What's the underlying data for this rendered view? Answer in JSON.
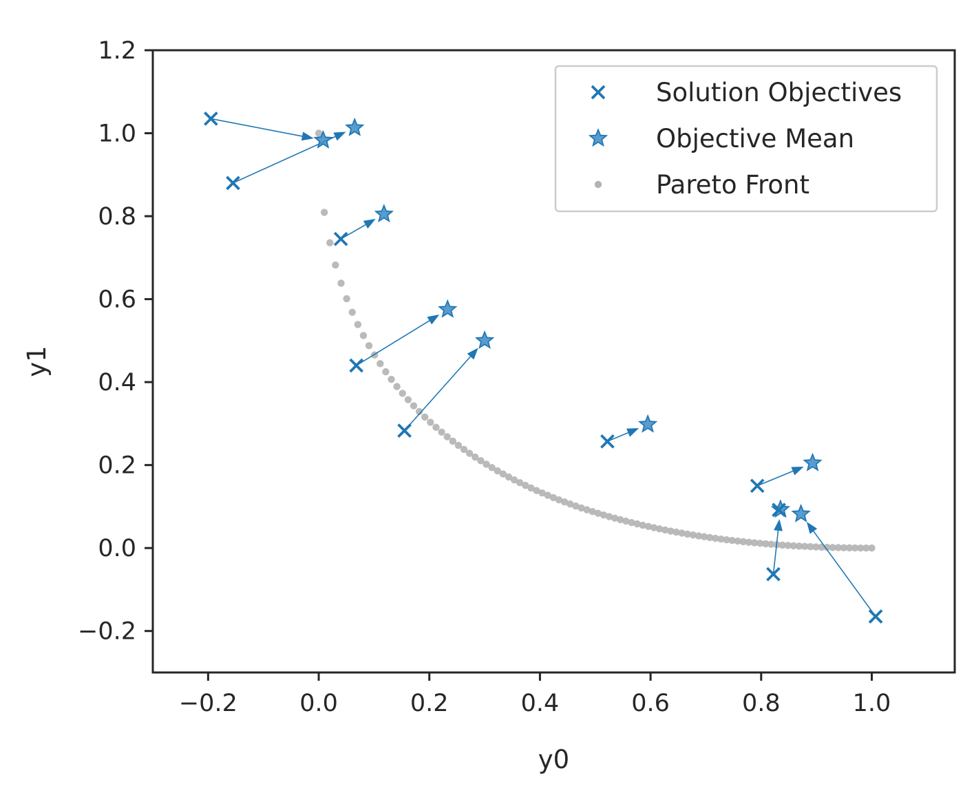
{
  "chart_data": {
    "type": "scatter",
    "title": "",
    "xlabel": "y0",
    "ylabel": "y1",
    "xlim": [
      -0.3,
      1.15
    ],
    "ylim": [
      -0.3,
      1.2
    ],
    "xticks": [
      -0.2,
      0.0,
      0.2,
      0.4,
      0.6,
      0.8,
      1.0
    ],
    "yticks": [
      -0.2,
      0.0,
      0.2,
      0.4,
      0.6,
      0.8,
      1.0,
      1.2
    ],
    "xtick_labels": [
      "−0.2",
      "0.0",
      "0.2",
      "0.4",
      "0.6",
      "0.8",
      "1.0"
    ],
    "ytick_labels": [
      "−0.2",
      "0.0",
      "0.2",
      "0.4",
      "0.6",
      "0.8",
      "1.0",
      "1.2"
    ],
    "grid": false,
    "legend_position": "top-right",
    "colors": {
      "solution": "#1f77b4",
      "mean": "#3d8bc4",
      "front": "#b3b3b3",
      "axes": "#262626"
    },
    "series": [
      {
        "name": "Solution Objectives",
        "marker": "x",
        "points": [
          [
            -0.195,
            1.035
          ],
          [
            -0.155,
            0.88
          ],
          [
            0.04,
            0.745
          ],
          [
            0.068,
            0.44
          ],
          [
            0.155,
            0.283
          ],
          [
            0.522,
            0.257
          ],
          [
            0.793,
            0.15
          ],
          [
            0.832,
            0.092
          ],
          [
            0.822,
            -0.063
          ],
          [
            1.007,
            -0.165
          ]
        ]
      },
      {
        "name": "Objective Mean",
        "marker": "star",
        "points": [
          [
            0.008,
            0.983
          ],
          [
            0.065,
            1.013
          ],
          [
            0.118,
            0.805
          ],
          [
            0.233,
            0.575
          ],
          [
            0.3,
            0.5
          ],
          [
            0.595,
            0.298
          ],
          [
            0.893,
            0.205
          ],
          [
            0.835,
            0.093
          ],
          [
            0.872,
            0.082
          ]
        ]
      },
      {
        "name": "Pareto Front",
        "marker": "dot",
        "function": "y = (1 - sqrt(x))^2",
        "x_range": [
          0.0,
          1.0
        ],
        "count": 100
      }
    ],
    "arrows": [
      {
        "from": [
          -0.195,
          1.035
        ],
        "to": [
          0.008,
          0.983
        ]
      },
      {
        "from": [
          -0.155,
          0.88
        ],
        "to": [
          0.065,
          1.013
        ]
      },
      {
        "from": [
          0.04,
          0.745
        ],
        "to": [
          0.118,
          0.805
        ]
      },
      {
        "from": [
          0.068,
          0.44
        ],
        "to": [
          0.233,
          0.575
        ]
      },
      {
        "from": [
          0.155,
          0.283
        ],
        "to": [
          0.3,
          0.5
        ]
      },
      {
        "from": [
          0.522,
          0.257
        ],
        "to": [
          0.595,
          0.298
        ]
      },
      {
        "from": [
          0.793,
          0.15
        ],
        "to": [
          0.893,
          0.205
        ]
      },
      {
        "from": [
          0.822,
          -0.063
        ],
        "to": [
          0.835,
          0.093
        ]
      },
      {
        "from": [
          1.007,
          -0.165
        ],
        "to": [
          0.872,
          0.082
        ]
      }
    ]
  }
}
